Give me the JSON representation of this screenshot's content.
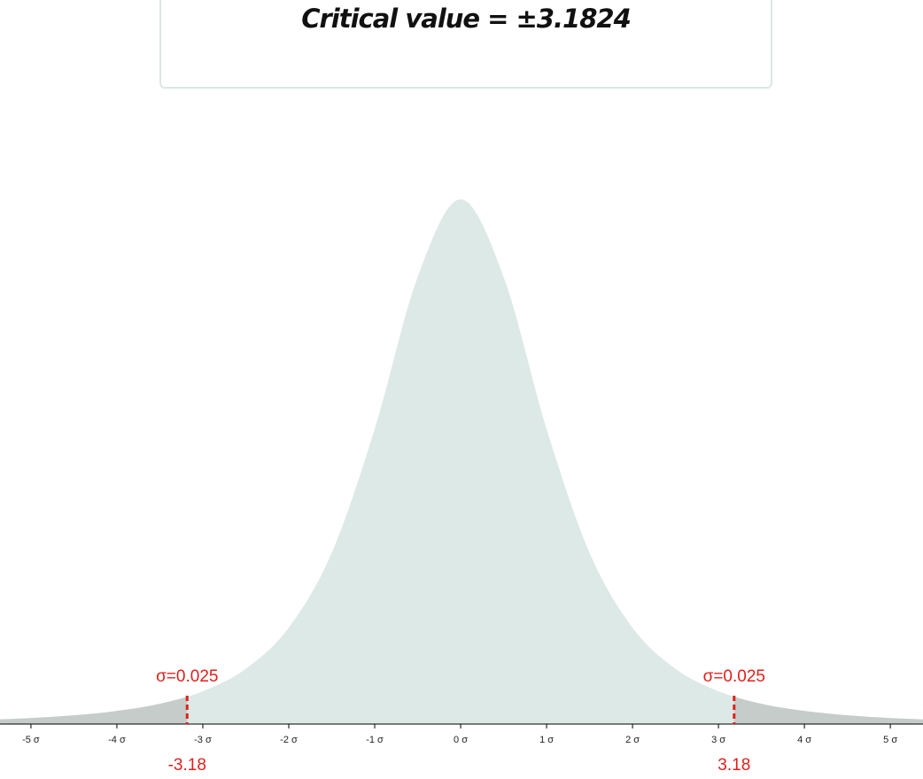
{
  "chart_data": {
    "type": "area",
    "title": "Critical value = ±3.1824",
    "x": [
      -5.5,
      -5,
      -4.5,
      -4,
      -3.5,
      -3,
      -2.5,
      -2,
      -1.5,
      -1,
      -0.5,
      0,
      0.5,
      1,
      1.5,
      2,
      2.5,
      3,
      3.5,
      4,
      4.5,
      5,
      5.5
    ],
    "values": [
      0.003,
      0.0042,
      0.0061,
      0.0092,
      0.0142,
      0.023,
      0.0387,
      0.0675,
      0.12,
      0.2067,
      0.3132,
      0.3676,
      0.3132,
      0.2067,
      0.12,
      0.0675,
      0.0387,
      0.023,
      0.0142,
      0.0092,
      0.0061,
      0.0042,
      0.003
    ],
    "color": "#dde9e6",
    "tail_color": "#c6ccc9",
    "marker_color": "#e0201b",
    "xlim": [
      -5.36,
      5.38
    ],
    "ylim": [
      0,
      0.37
    ],
    "xticks": [
      {
        "value": -5,
        "label": "-5 σ"
      },
      {
        "value": -4,
        "label": "-4 σ"
      },
      {
        "value": -3,
        "label": "-3 σ"
      },
      {
        "value": -2,
        "label": "-2 σ"
      },
      {
        "value": -1,
        "label": "-1 σ"
      },
      {
        "value": 0,
        "label": "0 σ"
      },
      {
        "value": 1,
        "label": "1 σ"
      },
      {
        "value": 2,
        "label": "2 σ"
      },
      {
        "value": 3,
        "label": "3 σ"
      },
      {
        "value": 4,
        "label": "4 σ"
      },
      {
        "value": 5,
        "label": "5 σ"
      }
    ],
    "critical_lines": [
      {
        "value": -3.1824,
        "label": "-3.18",
        "area_label": "σ=0.025"
      },
      {
        "value": 3.1824,
        "label": "3.18",
        "area_label": "σ=0.025"
      }
    ]
  }
}
